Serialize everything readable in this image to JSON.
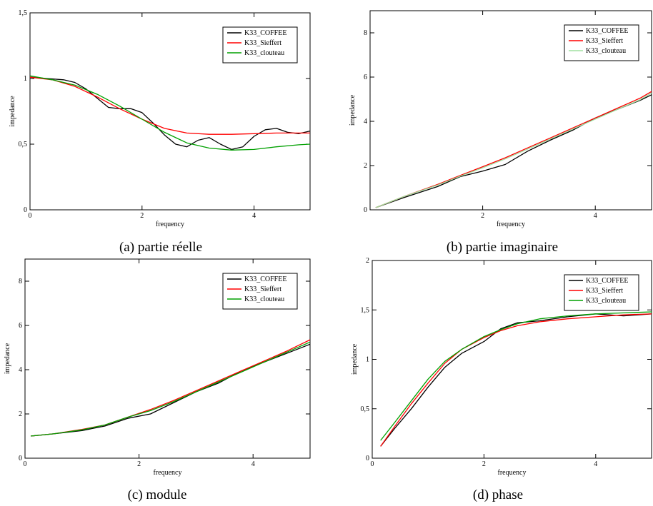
{
  "chart_data": [
    {
      "type": "line",
      "caption": "(a) partie réelle",
      "xlabel": "frequency",
      "ylabel": "impedance",
      "xlim": [
        0,
        5
      ],
      "ylim": [
        0,
        1.5
      ],
      "xticks": [
        0,
        2,
        4
      ],
      "xtick_labels": [
        "0",
        "2",
        "4"
      ],
      "yticks": [
        0,
        0.5,
        1,
        1.5
      ],
      "ytick_labels": [
        "0",
        "0,5",
        "1",
        "1,5"
      ],
      "legend_position": "top-right",
      "series": [
        {
          "name": "K33_COFFEE",
          "color": "#000000",
          "x": [
            0,
            0.3,
            0.6,
            0.8,
            1.0,
            1.2,
            1.4,
            1.6,
            1.8,
            2.0,
            2.2,
            2.4,
            2.6,
            2.8,
            3.0,
            3.2,
            3.4,
            3.6,
            3.8,
            4.0,
            4.2,
            4.4,
            4.6,
            4.8,
            5.0
          ],
          "y": [
            1.01,
            1.0,
            0.99,
            0.97,
            0.92,
            0.85,
            0.78,
            0.77,
            0.77,
            0.74,
            0.66,
            0.57,
            0.5,
            0.48,
            0.53,
            0.55,
            0.5,
            0.46,
            0.48,
            0.56,
            0.61,
            0.62,
            0.59,
            0.58,
            0.6
          ]
        },
        {
          "name": "K33_Sieffert",
          "color": "#ff0000",
          "x": [
            0,
            0.4,
            0.8,
            1.2,
            1.6,
            2.0,
            2.4,
            2.8,
            3.2,
            3.6,
            4.0,
            4.4,
            4.8,
            5.0
          ],
          "y": [
            1.01,
            0.99,
            0.94,
            0.86,
            0.77,
            0.69,
            0.62,
            0.585,
            0.575,
            0.575,
            0.58,
            0.585,
            0.585,
            0.585
          ]
        },
        {
          "name": "K33_clouteau",
          "color": "#00a000",
          "x": [
            0,
            0.4,
            0.8,
            1.2,
            1.6,
            2.0,
            2.4,
            2.8,
            3.2,
            3.6,
            4.0,
            4.4,
            4.8,
            5.0
          ],
          "y": [
            1.02,
            0.99,
            0.95,
            0.88,
            0.79,
            0.69,
            0.59,
            0.51,
            0.47,
            0.455,
            0.46,
            0.48,
            0.495,
            0.5
          ]
        }
      ]
    },
    {
      "type": "line",
      "caption": "(b) partie imaginaire",
      "xlabel": "frequency",
      "ylabel": "impedance",
      "xlim": [
        0,
        5
      ],
      "ylim": [
        0,
        9
      ],
      "xticks": [
        2,
        4
      ],
      "xtick_labels": [
        "2",
        "4"
      ],
      "yticks": [
        0,
        2,
        4,
        6,
        8
      ],
      "ytick_labels": [
        "0",
        "2",
        "4",
        "6",
        "8"
      ],
      "legend_position": "top-right",
      "series": [
        {
          "name": "K33_COFFEE",
          "color": "#000000",
          "x": [
            0.1,
            0.6,
            1.2,
            1.6,
            2.0,
            2.4,
            2.8,
            3.2,
            3.6,
            4.0,
            4.4,
            4.8,
            5.0
          ],
          "y": [
            0.1,
            0.55,
            1.05,
            1.5,
            1.75,
            2.05,
            2.65,
            3.15,
            3.6,
            4.15,
            4.55,
            4.95,
            5.2
          ]
        },
        {
          "name": "K33_Sieffert",
          "color": "#ff0000",
          "x": [
            0.1,
            0.6,
            1.2,
            1.6,
            2.0,
            2.4,
            2.8,
            3.2,
            3.6,
            4.0,
            4.4,
            4.8,
            5.0
          ],
          "y": [
            0.1,
            0.6,
            1.15,
            1.55,
            1.95,
            2.35,
            2.8,
            3.25,
            3.7,
            4.15,
            4.6,
            5.05,
            5.35
          ]
        },
        {
          "name": "K33_clouteau",
          "color": "#a0e0a0",
          "x": [
            0.1,
            0.6,
            1.2,
            1.6,
            2.0,
            2.4,
            2.8,
            3.2,
            3.6,
            4.0,
            4.4,
            4.8,
            5.0
          ],
          "y": [
            0.1,
            0.6,
            1.12,
            1.52,
            1.9,
            2.3,
            2.75,
            3.2,
            3.65,
            4.1,
            4.55,
            4.98,
            5.28
          ]
        }
      ]
    },
    {
      "type": "line",
      "caption": "(c) module",
      "xlabel": "frequency",
      "ylabel": "impedance",
      "xlim": [
        0,
        5
      ],
      "ylim": [
        0,
        9
      ],
      "xticks": [
        0,
        2,
        4
      ],
      "xtick_labels": [
        "0",
        "2",
        "4"
      ],
      "yticks": [
        0,
        2,
        4,
        6,
        8
      ],
      "ytick_labels": [
        "0",
        "2",
        "4",
        "6",
        "8"
      ],
      "legend_position": "top-right",
      "series": [
        {
          "name": "K33_COFFEE",
          "color": "#000000",
          "x": [
            0.1,
            0.5,
            1.0,
            1.4,
            1.8,
            2.2,
            2.6,
            3.0,
            3.4,
            3.8,
            4.2,
            4.6,
            5.0
          ],
          "y": [
            1.0,
            1.1,
            1.25,
            1.45,
            1.8,
            2.0,
            2.5,
            3.0,
            3.4,
            3.95,
            4.35,
            4.75,
            5.15
          ]
        },
        {
          "name": "K33_Sieffert",
          "color": "#ff0000",
          "x": [
            0.1,
            0.5,
            1.0,
            1.4,
            1.8,
            2.2,
            2.6,
            3.0,
            3.4,
            3.8,
            4.2,
            4.6,
            5.0
          ],
          "y": [
            1.0,
            1.1,
            1.3,
            1.5,
            1.85,
            2.2,
            2.6,
            3.05,
            3.5,
            3.95,
            4.4,
            4.85,
            5.35
          ]
        },
        {
          "name": "K33_clouteau",
          "color": "#00a000",
          "x": [
            0.1,
            0.5,
            1.0,
            1.4,
            1.8,
            2.2,
            2.6,
            3.0,
            3.4,
            3.8,
            4.2,
            4.6,
            5.0
          ],
          "y": [
            1.0,
            1.1,
            1.28,
            1.5,
            1.85,
            2.15,
            2.55,
            3.0,
            3.45,
            3.9,
            4.35,
            4.8,
            5.25
          ]
        }
      ]
    },
    {
      "type": "line",
      "caption": "(d) phase",
      "xlabel": "frequency",
      "ylabel": "impedance",
      "xlim": [
        0,
        5
      ],
      "ylim": [
        0,
        2
      ],
      "xticks": [
        0,
        2,
        4
      ],
      "xtick_labels": [
        "0",
        "2",
        "4"
      ],
      "yticks": [
        0,
        0.5,
        1,
        1.5,
        2
      ],
      "ytick_labels": [
        "0",
        "0,5",
        "1",
        "1,5",
        "2"
      ],
      "legend_position": "top-right",
      "series": [
        {
          "name": "K33_COFFEE",
          "color": "#000000",
          "x": [
            0.15,
            0.4,
            0.7,
            1.0,
            1.3,
            1.6,
            2.0,
            2.3,
            2.6,
            3.0,
            3.5,
            4.0,
            4.5,
            5.0
          ],
          "y": [
            0.12,
            0.3,
            0.5,
            0.72,
            0.92,
            1.06,
            1.18,
            1.31,
            1.37,
            1.39,
            1.43,
            1.46,
            1.44,
            1.46
          ]
        },
        {
          "name": "K33_Sieffert",
          "color": "#ff0000",
          "x": [
            0.15,
            0.4,
            0.7,
            1.0,
            1.3,
            1.6,
            2.0,
            2.3,
            2.6,
            3.0,
            3.5,
            4.0,
            4.5,
            5.0
          ],
          "y": [
            0.12,
            0.32,
            0.55,
            0.76,
            0.96,
            1.1,
            1.22,
            1.29,
            1.34,
            1.38,
            1.41,
            1.43,
            1.45,
            1.46
          ]
        },
        {
          "name": "K33_clouteau",
          "color": "#00a000",
          "x": [
            0.15,
            0.4,
            0.7,
            1.0,
            1.3,
            1.6,
            2.0,
            2.3,
            2.6,
            3.0,
            3.5,
            4.0,
            4.5,
            5.0
          ],
          "y": [
            0.18,
            0.36,
            0.58,
            0.8,
            0.98,
            1.1,
            1.23,
            1.3,
            1.36,
            1.41,
            1.44,
            1.46,
            1.47,
            1.48
          ]
        }
      ]
    }
  ]
}
